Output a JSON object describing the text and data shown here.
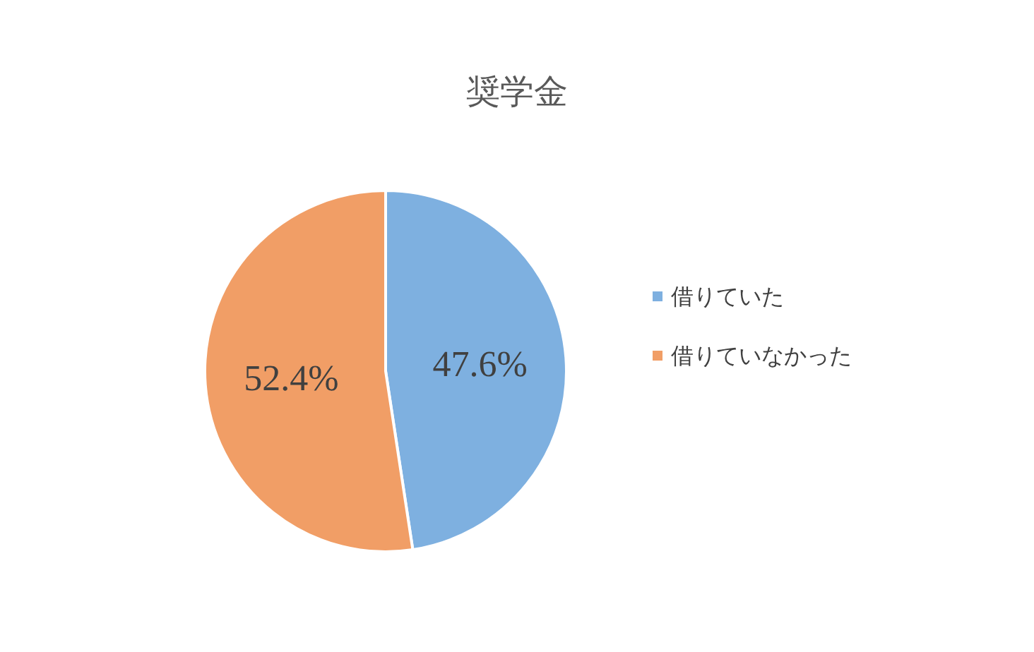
{
  "chart_data": {
    "type": "pie",
    "title": "奨学金",
    "categories": [
      "借りていた",
      "借りていなかった"
    ],
    "values": [
      47.6,
      52.4
    ],
    "colors": [
      "#7eb0e0",
      "#f19e66"
    ],
    "value_labels": [
      "47.6%",
      "52.4%"
    ],
    "legend": "right"
  }
}
